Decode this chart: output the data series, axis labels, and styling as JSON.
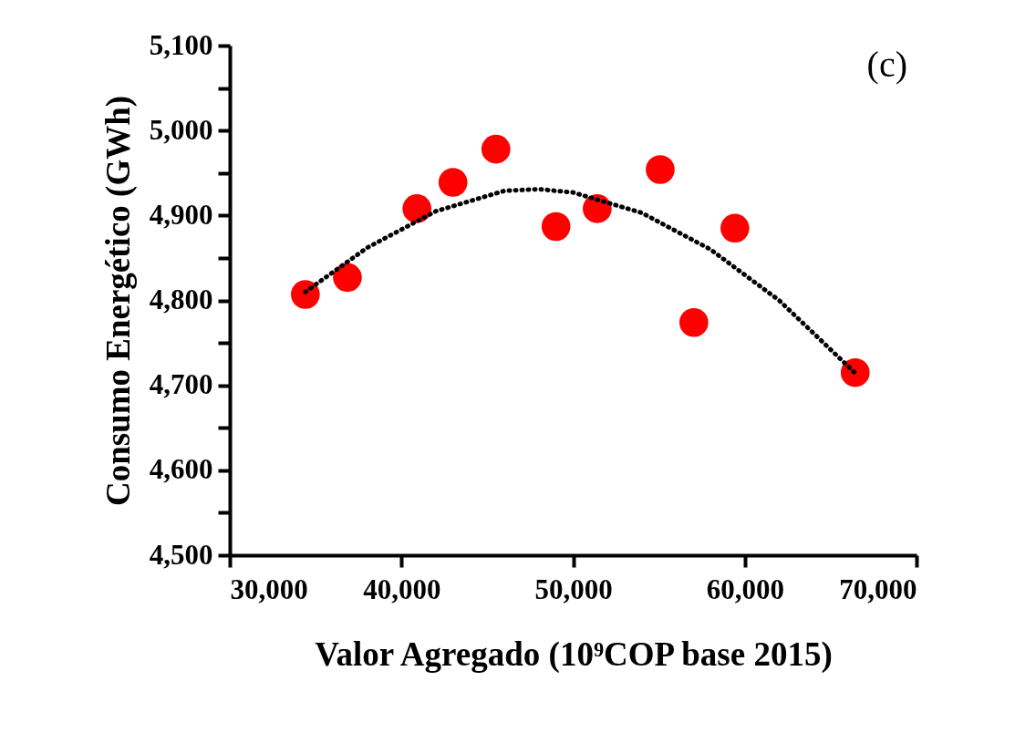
{
  "chart_data": {
    "type": "scatter",
    "xlabel": "Valor Agregado (10⁹COP base 2015)",
    "ylabel": "Consumo Energético (GWh)",
    "annotations": [
      "(c)"
    ],
    "xlim": [
      30000,
      70000
    ],
    "ylim": [
      4500,
      5100
    ],
    "xticks": [
      {
        "value": 30000,
        "label": "30,000"
      },
      {
        "value": 40000,
        "label": "40,000"
      },
      {
        "value": 50000,
        "label": "50,000"
      },
      {
        "value": 60000,
        "label": "60,000"
      },
      {
        "value": 70000,
        "label": "70,000"
      }
    ],
    "yticks": [
      {
        "value": 4500,
        "label": "4,500"
      },
      {
        "value": 4550,
        "label": null
      },
      {
        "value": 4600,
        "label": "4,600"
      },
      {
        "value": 4650,
        "label": null
      },
      {
        "value": 4700,
        "label": "4,700"
      },
      {
        "value": 4750,
        "label": null
      },
      {
        "value": 4800,
        "label": "4,800"
      },
      {
        "value": 4850,
        "label": null
      },
      {
        "value": 4900,
        "label": "4,900"
      },
      {
        "value": 4950,
        "label": null
      },
      {
        "value": 5000,
        "label": "5,000"
      },
      {
        "value": 5050,
        "label": null
      },
      {
        "value": 5100,
        "label": "5,100"
      }
    ],
    "grid": false,
    "series": [
      {
        "color": "#ff0000",
        "marker": "circle",
        "x": [
          34400,
          36850,
          40900,
          43000,
          45500,
          49000,
          51400,
          55070,
          57030,
          59420,
          66430
        ],
        "values": [
          4807,
          4827,
          4908,
          4939,
          4978,
          4887,
          4908,
          4954,
          4774,
          4885,
          4715
        ]
      },
      {
        "type": "line",
        "color": "#000000",
        "line_style": "dotted",
        "marker": "none",
        "x": [
          34400,
          38000,
          42000,
          46000,
          48000,
          50000,
          54000,
          58000,
          62000,
          66400
        ],
        "values": [
          4810,
          4862,
          4905,
          4929,
          4931,
          4927,
          4903,
          4860,
          4800,
          4715
        ]
      }
    ]
  }
}
